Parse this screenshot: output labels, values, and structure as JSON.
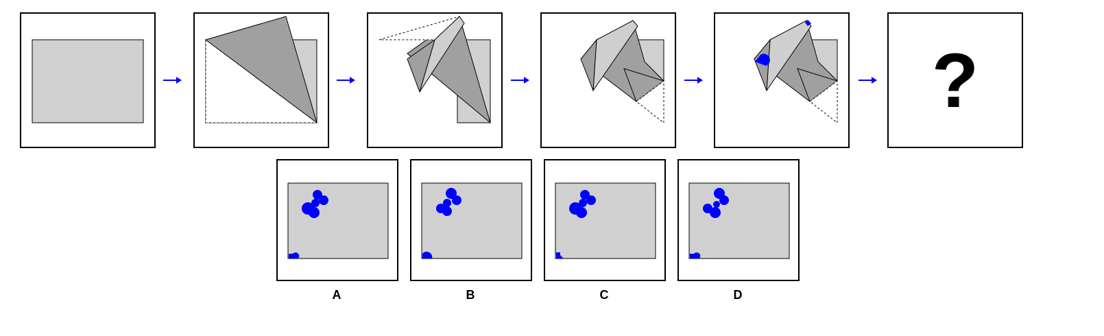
{
  "colors": {
    "paper": "#d0d0d0",
    "fold": "#a0a0a0",
    "fold_light": "#cfcfcf",
    "punch": "#0000ff",
    "arrow": "#0000ff",
    "border": "#000000"
  },
  "steps": [
    {
      "name": "unfolded-paper"
    },
    {
      "name": "fold-1"
    },
    {
      "name": "fold-2"
    },
    {
      "name": "fold-3"
    },
    {
      "name": "punched"
    },
    {
      "name": "question",
      "text": "?"
    }
  ],
  "arrow_icon": "right-arrow-icon",
  "options": [
    {
      "label": "A"
    },
    {
      "label": "B"
    },
    {
      "label": "C"
    },
    {
      "label": "D"
    }
  ]
}
